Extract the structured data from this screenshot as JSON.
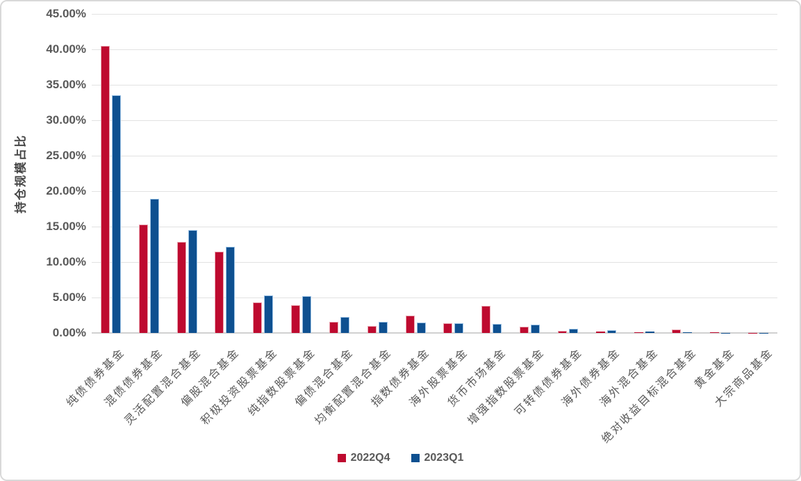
{
  "chart_data": {
    "type": "bar",
    "title": "",
    "xlabel": "",
    "ylabel": "持仓规模占比",
    "ylim": [
      0,
      45
    ],
    "ytick_step": 5,
    "grid": true,
    "legend_position": "bottom",
    "yticks": [
      "45.00%",
      "40.00%",
      "35.00%",
      "30.00%",
      "25.00%",
      "20.00%",
      "15.00%",
      "10.00%",
      "5.00%",
      "0.00%"
    ],
    "categories": [
      "纯债债券基金",
      "混债债券基金",
      "灵活配置混合基金",
      "偏股混合基金",
      "积极投资股票基金",
      "纯指数股票基金",
      "偏债混合基金",
      "均衡配置混合基金",
      "指数债券基金",
      "海外股票基金",
      "货币市场基金",
      "增强指数股票基金",
      "可转债债券基金",
      "海外债券基金",
      "海外混合基金",
      "绝对收益目标混合基金",
      "黄金基金",
      "大宗商品基金"
    ],
    "series": [
      {
        "name": "2022Q4",
        "color": "#BE0A2F",
        "border_color": "#EAA7B2",
        "values": [
          40.5,
          15.3,
          12.8,
          11.5,
          4.3,
          3.9,
          1.6,
          1.0,
          2.5,
          1.4,
          3.8,
          0.9,
          0.25,
          0.2,
          0.05,
          0.5,
          0.1,
          0.01
        ]
      },
      {
        "name": "2023Q1",
        "color": "#0E5090",
        "border_color": "#9DC3E6",
        "values": [
          33.5,
          18.9,
          14.5,
          12.2,
          5.3,
          5.2,
          2.3,
          1.6,
          1.5,
          1.4,
          1.3,
          1.2,
          0.6,
          0.35,
          0.2,
          0.05,
          0.03,
          0.01
        ]
      }
    ]
  },
  "styles": {
    "grid_color": "#E2E2E2",
    "axis_line_color": "#D0D0D0",
    "tick_text_color": "#595959",
    "frame_border_color": "#D9D9D9",
    "background": "#FFFFFF"
  }
}
